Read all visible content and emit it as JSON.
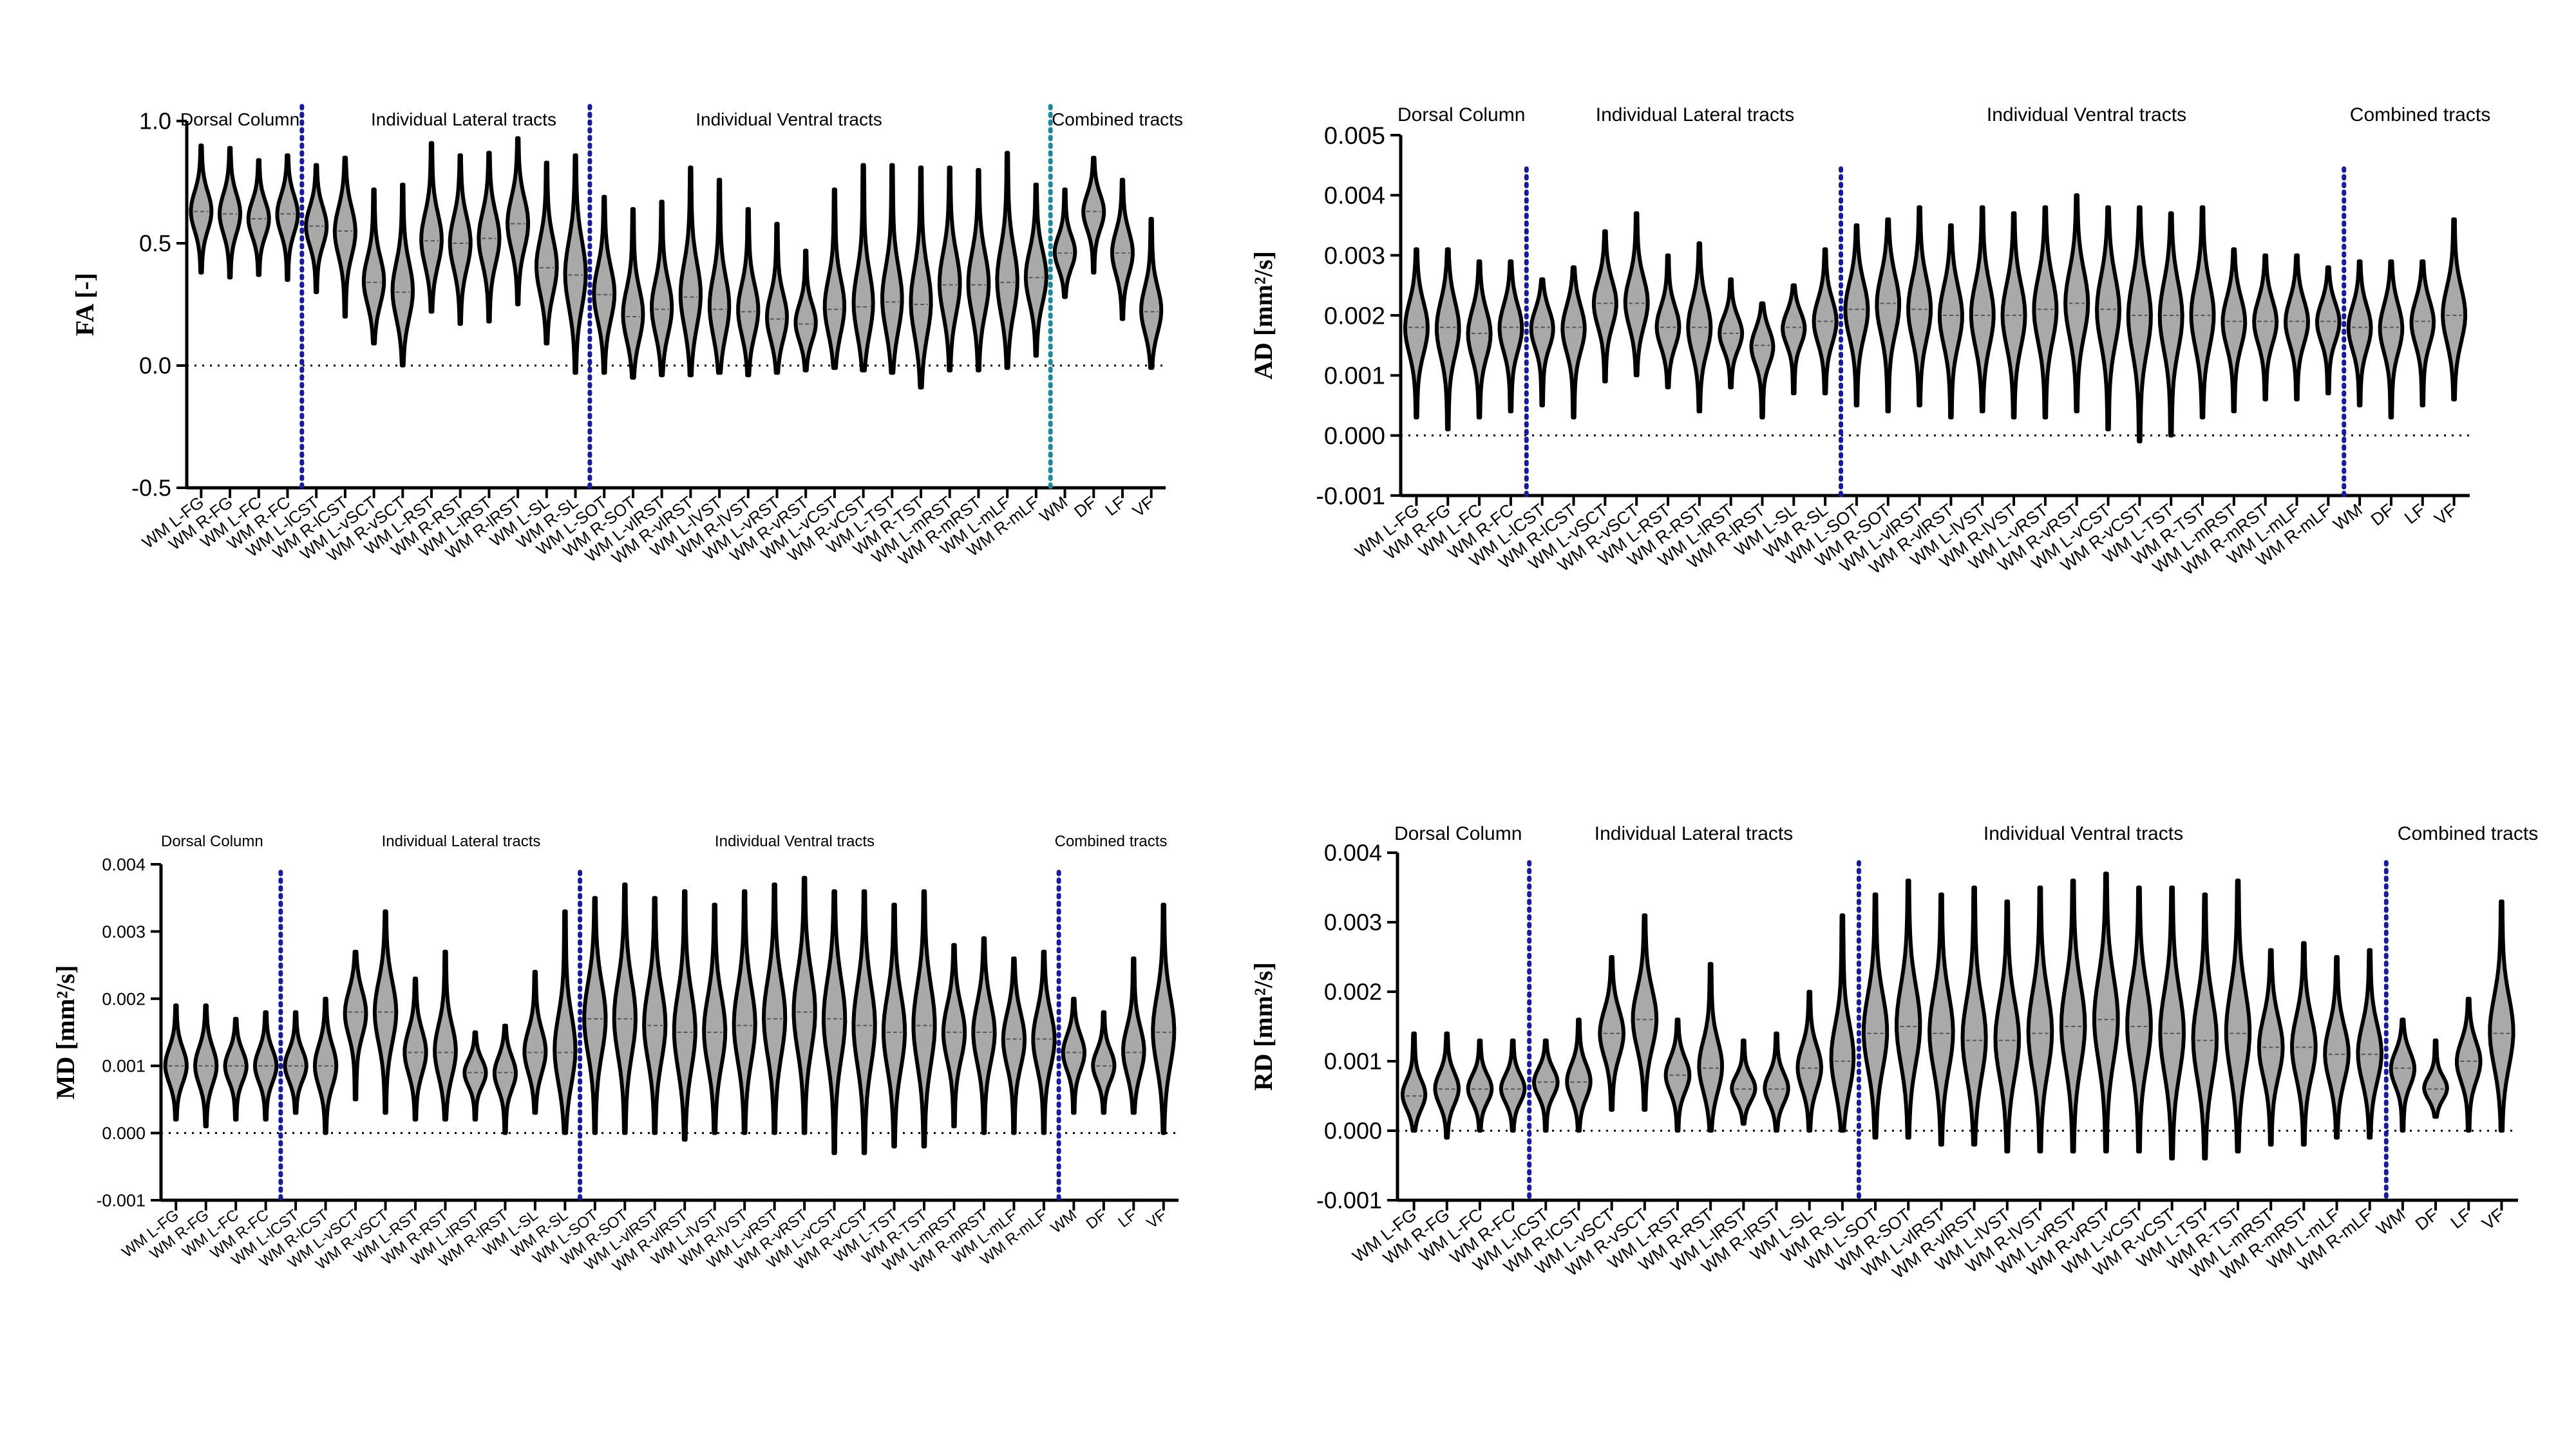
{
  "styles": {
    "violin_fill": "#a9a9a9",
    "violin_stroke": "#000000",
    "median_line": "#555555",
    "divider_blue": "#1a1a9e",
    "divider_teal": "#1c8a9a"
  },
  "chart_data": [
    {
      "id": "fa",
      "type": "violin",
      "ylabel": "FA [-]",
      "ylim": [
        -0.5,
        1.0
      ],
      "yticks": [
        "-0.5",
        "0.0",
        "0.5",
        "1.0"
      ],
      "categories": [
        "WM L-FG",
        "WM R-FG",
        "WM L-FC",
        "WM R-FC",
        "WM L-lCST",
        "WM R-lCST",
        "WM L-vSCT",
        "WM R-vSCT",
        "WM L-RST",
        "WM R-RST",
        "WM L-lRST",
        "WM R-lRST",
        "WM L-SL",
        "WM R-SL",
        "WM L-SOT",
        "WM R-SOT",
        "WM L-vlRST",
        "WM R-vlRST",
        "WM L-lVST",
        "WM R-lVST",
        "WM L-vRST",
        "WM R-vRST",
        "WM L-vCST",
        "WM R-vCST",
        "WM L-TST",
        "WM R-TST",
        "WM L-mRST",
        "WM R-mRST",
        "WM L-mLF",
        "WM R-mLF",
        "WM",
        "DF",
        "LF",
        "VF"
      ],
      "group_titles": [
        "Dorsal Column",
        "Individual Lateral tracts",
        "Individual Ventral tracts",
        "Combined tracts"
      ],
      "dividers_after": [
        4,
        14,
        30
      ],
      "series": [
        {
          "name": "min",
          "values": [
            0.38,
            0.36,
            0.37,
            0.35,
            0.3,
            0.2,
            0.09,
            0.0,
            0.22,
            0.17,
            0.18,
            0.25,
            0.09,
            -0.03,
            -0.03,
            -0.05,
            -0.04,
            -0.04,
            -0.03,
            -0.04,
            -0.03,
            -0.02,
            -0.01,
            -0.02,
            -0.03,
            -0.09,
            -0.02,
            -0.02,
            -0.01,
            0.04,
            0.28,
            0.38,
            0.19,
            -0.01
          ]
        },
        {
          "name": "median",
          "values": [
            0.63,
            0.62,
            0.6,
            0.62,
            0.57,
            0.55,
            0.34,
            0.3,
            0.51,
            0.5,
            0.52,
            0.58,
            0.4,
            0.37,
            0.29,
            0.2,
            0.23,
            0.28,
            0.23,
            0.22,
            0.19,
            0.17,
            0.23,
            0.24,
            0.26,
            0.25,
            0.33,
            0.33,
            0.34,
            0.36,
            0.46,
            0.63,
            0.46,
            0.22
          ]
        },
        {
          "name": "max",
          "values": [
            0.9,
            0.89,
            0.84,
            0.86,
            0.82,
            0.85,
            0.72,
            0.74,
            0.91,
            0.86,
            0.87,
            0.93,
            0.83,
            0.86,
            0.69,
            0.64,
            0.67,
            0.81,
            0.76,
            0.64,
            0.58,
            0.47,
            0.72,
            0.82,
            0.82,
            0.81,
            0.81,
            0.8,
            0.87,
            0.74,
            0.72,
            0.85,
            0.76,
            0.6
          ]
        }
      ]
    },
    {
      "id": "ad",
      "type": "violin",
      "ylabel": "AD [mm²/s]",
      "ylim": [
        -0.001,
        0.005
      ],
      "yticks": [
        "-0.001",
        "0.000",
        "0.001",
        "0.002",
        "0.003",
        "0.004",
        "0.005"
      ],
      "categories": [
        "WM L-FG",
        "WM R-FG",
        "WM L-FC",
        "WM R-FC",
        "WM L-lCST",
        "WM R-lCST",
        "WM L-vSCT",
        "WM R-vSCT",
        "WM L-RST",
        "WM R-RST",
        "WM L-lRST",
        "WM R-lRST",
        "WM L-SL",
        "WM R-SL",
        "WM L-SOT",
        "WM R-SOT",
        "WM L-vlRST",
        "WM R-vlRST",
        "WM L-lVST",
        "WM R-lVST",
        "WM L-vRST",
        "WM R-vRST",
        "WM L-vCST",
        "WM R-vCST",
        "WM L-TST",
        "WM R-TST",
        "WM L-mRST",
        "WM R-mRST",
        "WM L-mLF",
        "WM R-mLF",
        "WM",
        "DF",
        "LF",
        "VF"
      ],
      "group_titles": [
        "Dorsal Column",
        "Individual Lateral tracts",
        "Individual Ventral tracts",
        "Combined tracts"
      ],
      "dividers_after": [
        4,
        14,
        30
      ],
      "series": [
        {
          "name": "min",
          "values": [
            0.0003,
            0.0001,
            0.0003,
            0.0004,
            0.0005,
            0.0003,
            0.0009,
            0.001,
            0.0008,
            0.0004,
            0.0008,
            0.0003,
            0.0007,
            0.0007,
            0.0005,
            0.0004,
            0.0005,
            0.0003,
            0.0004,
            0.0003,
            0.0003,
            0.0004,
            0.0001,
            -0.0001,
            0.0,
            0.0003,
            0.0004,
            0.0006,
            0.0006,
            0.0007,
            0.0005,
            0.0003,
            0.0005,
            0.0006
          ]
        },
        {
          "name": "median",
          "values": [
            0.0018,
            0.0018,
            0.0017,
            0.0018,
            0.0018,
            0.0018,
            0.0022,
            0.0022,
            0.0018,
            0.0018,
            0.0017,
            0.0015,
            0.0018,
            0.0019,
            0.0021,
            0.0022,
            0.0021,
            0.002,
            0.002,
            0.002,
            0.0021,
            0.0022,
            0.0021,
            0.002,
            0.002,
            0.002,
            0.0019,
            0.0019,
            0.0019,
            0.0019,
            0.0018,
            0.0018,
            0.0019,
            0.002
          ]
        },
        {
          "name": "max",
          "values": [
            0.0031,
            0.0031,
            0.0029,
            0.0029,
            0.0026,
            0.0028,
            0.0034,
            0.0037,
            0.003,
            0.0032,
            0.0026,
            0.0022,
            0.0025,
            0.0031,
            0.0035,
            0.0036,
            0.0038,
            0.0035,
            0.0038,
            0.0037,
            0.0038,
            0.004,
            0.0038,
            0.0038,
            0.0037,
            0.0038,
            0.0031,
            0.003,
            0.003,
            0.0028,
            0.0029,
            0.0029,
            0.0029,
            0.0036
          ]
        }
      ]
    },
    {
      "id": "md",
      "type": "violin",
      "ylabel": "MD [mm²/s]",
      "ylim": [
        -0.001,
        0.004
      ],
      "yticks": [
        "-0.001",
        "0.000",
        "0.001",
        "0.002",
        "0.003",
        "0.004"
      ],
      "categories": [
        "WM L-FG",
        "WM R-FG",
        "WM L-FC",
        "WM R-FC",
        "WM L-lCST",
        "WM R-lCST",
        "WM L-vSCT",
        "WM R-vSCT",
        "WM L-RST",
        "WM R-RST",
        "WM L-lRST",
        "WM R-lRST",
        "WM L-SL",
        "WM R-SL",
        "WM L-SOT",
        "WM R-SOT",
        "WM L-vlRST",
        "WM R-vlRST",
        "WM L-lVST",
        "WM R-lVST",
        "WM L-vRST",
        "WM R-vRST",
        "WM L-vCST",
        "WM R-vCST",
        "WM L-TST",
        "WM R-TST",
        "WM L-mRST",
        "WM R-mRST",
        "WM L-mLF",
        "WM R-mLF",
        "WM",
        "DF",
        "LF",
        "VF"
      ],
      "group_titles": [
        "Dorsal Column",
        "Individual Lateral tracts",
        "Individual Ventral tracts",
        "Combined tracts"
      ],
      "dividers_after": [
        4,
        14,
        30
      ],
      "series": [
        {
          "name": "min",
          "values": [
            0.0002,
            0.0001,
            0.0002,
            0.0002,
            0.0003,
            0.0,
            0.0005,
            0.0003,
            0.0002,
            0.0002,
            0.0002,
            0.0,
            0.0003,
            0.0,
            0.0,
            0.0,
            0.0,
            -0.0001,
            0.0,
            0.0,
            0.0,
            0.0,
            -0.0003,
            -0.0003,
            -0.0002,
            -0.0002,
            0.0001,
            0.0,
            0.0,
            0.0,
            0.0003,
            0.0003,
            0.0003,
            0.0
          ]
        },
        {
          "name": "median",
          "values": [
            0.001,
            0.001,
            0.001,
            0.001,
            0.001,
            0.001,
            0.0018,
            0.0018,
            0.0012,
            0.0012,
            0.0009,
            0.0009,
            0.0012,
            0.0012,
            0.0017,
            0.0017,
            0.0016,
            0.0015,
            0.0015,
            0.0016,
            0.0017,
            0.0018,
            0.0017,
            0.0016,
            0.0015,
            0.0016,
            0.0015,
            0.0015,
            0.0014,
            0.0014,
            0.0012,
            0.001,
            0.0012,
            0.0015
          ]
        },
        {
          "name": "max",
          "values": [
            0.0019,
            0.0019,
            0.0017,
            0.0018,
            0.0018,
            0.002,
            0.0027,
            0.0033,
            0.0023,
            0.0027,
            0.0015,
            0.0016,
            0.0024,
            0.0033,
            0.0035,
            0.0037,
            0.0035,
            0.0036,
            0.0034,
            0.0036,
            0.0037,
            0.0038,
            0.0036,
            0.0036,
            0.0034,
            0.0036,
            0.0028,
            0.0029,
            0.0026,
            0.0027,
            0.002,
            0.0018,
            0.0026,
            0.0034
          ]
        }
      ]
    },
    {
      "id": "rd",
      "type": "violin",
      "ylabel": "RD [mm²/s]",
      "ylim": [
        -0.001,
        0.004
      ],
      "yticks": [
        "-0.001",
        "0.000",
        "0.001",
        "0.002",
        "0.003",
        "0.004"
      ],
      "categories": [
        "WM L-FG",
        "WM R-FG",
        "WM L-FC",
        "WM R-FC",
        "WM L-lCST",
        "WM R-lCST",
        "WM L-vSCT",
        "WM R-vSCT",
        "WM L-RST",
        "WM R-RST",
        "WM L-lRST",
        "WM R-lRST",
        "WM L-SL",
        "WM R-SL",
        "WM L-SOT",
        "WM R-SOT",
        "WM L-vlRST",
        "WM R-vlRST",
        "WM L-lVST",
        "WM R-lVST",
        "WM L-vRST",
        "WM R-vRST",
        "WM L-vCST",
        "WM R-vCST",
        "WM L-TST",
        "WM R-TST",
        "WM L-mRST",
        "WM R-mRST",
        "WM L-mLF",
        "WM R-mLF",
        "WM",
        "DF",
        "LF",
        "VF"
      ],
      "group_titles": [
        "Dorsal Column",
        "Individual Lateral tracts",
        "Individual Ventral tracts",
        "Combined tracts"
      ],
      "dividers_after": [
        4,
        14,
        30
      ],
      "series": [
        {
          "name": "min",
          "values": [
            0.0,
            -0.0001,
            0.0,
            0.0,
            0.0,
            0.0,
            0.0003,
            0.0003,
            0.0,
            0.0,
            0.0001,
            0.0,
            0.0,
            0.0,
            -0.0001,
            -0.0001,
            -0.0002,
            -0.0002,
            -0.0003,
            -0.0003,
            -0.0003,
            -0.0003,
            -0.0003,
            -0.0004,
            -0.0004,
            -0.0003,
            -0.0002,
            -0.0002,
            -0.0001,
            -0.0001,
            0.0,
            0.0002,
            0.0,
            0.0
          ]
        },
        {
          "name": "median",
          "values": [
            0.0005,
            0.0006,
            0.0006,
            0.0006,
            0.0007,
            0.0007,
            0.0014,
            0.0016,
            0.0008,
            0.0009,
            0.0006,
            0.0006,
            0.0009,
            0.001,
            0.0014,
            0.0015,
            0.0014,
            0.0013,
            0.0013,
            0.0014,
            0.0015,
            0.0016,
            0.0015,
            0.0014,
            0.0013,
            0.0014,
            0.0012,
            0.0012,
            0.0011,
            0.0011,
            0.0009,
            0.0006,
            0.001,
            0.0014
          ]
        },
        {
          "name": "max",
          "values": [
            0.0014,
            0.0014,
            0.0013,
            0.0013,
            0.0013,
            0.0016,
            0.0025,
            0.0031,
            0.0016,
            0.0024,
            0.0013,
            0.0014,
            0.002,
            0.0031,
            0.0034,
            0.0036,
            0.0034,
            0.0035,
            0.0033,
            0.0035,
            0.0036,
            0.0037,
            0.0035,
            0.0035,
            0.0034,
            0.0036,
            0.0026,
            0.0027,
            0.0025,
            0.0026,
            0.0016,
            0.0013,
            0.0019,
            0.0033
          ]
        }
      ]
    }
  ]
}
